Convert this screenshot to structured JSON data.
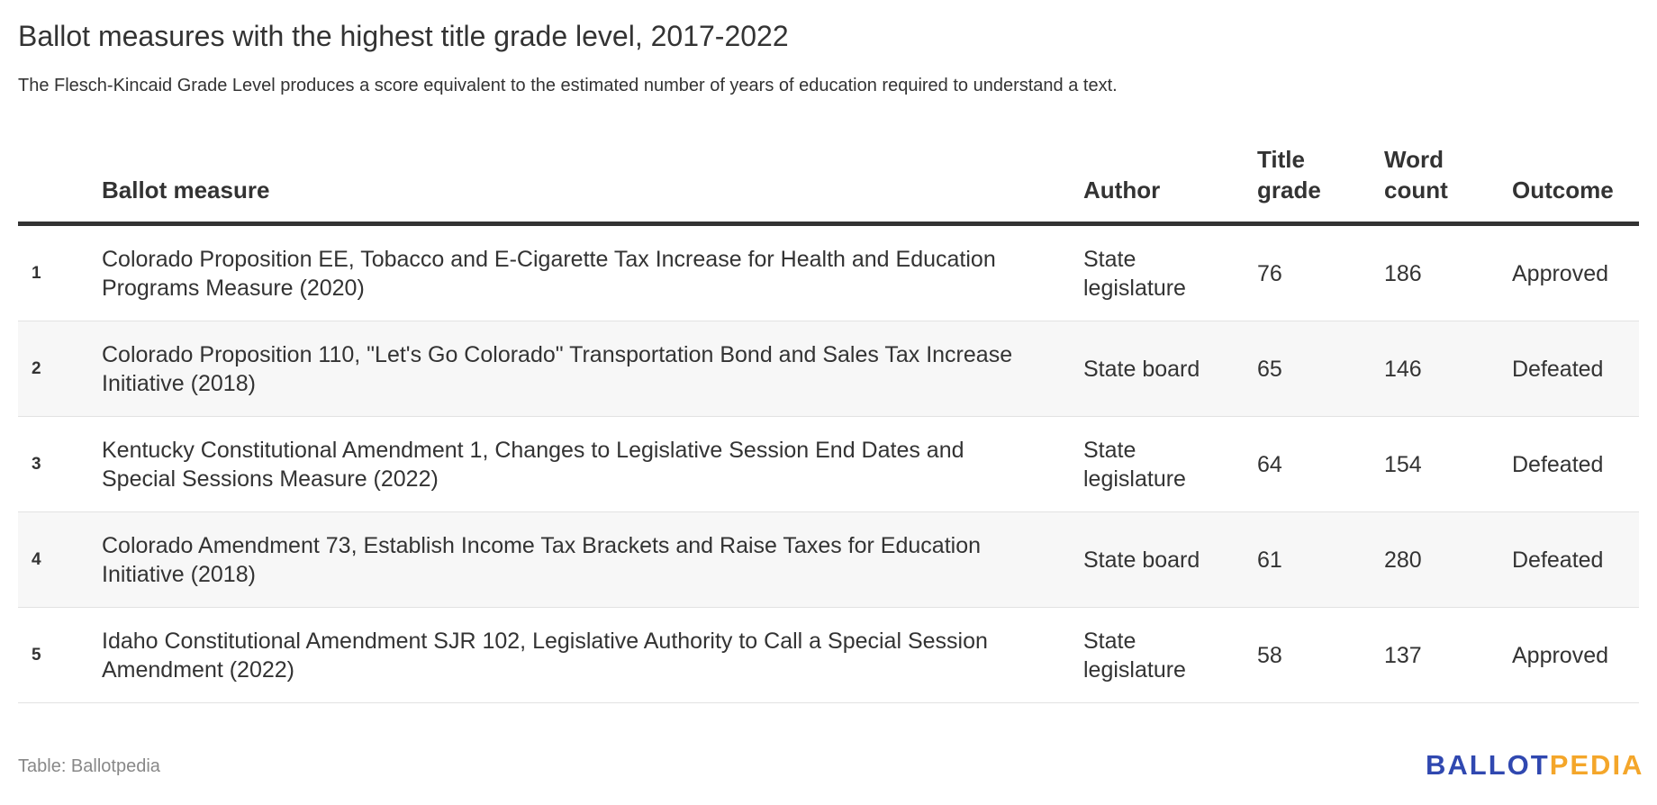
{
  "title": "Ballot measures with the highest title grade level, 2017-2022",
  "subtitle": "The Flesch-Kincaid Grade Level produces a score equivalent to the estimated number of years of education required to understand a text.",
  "columns": [
    "",
    "Ballot measure",
    "Author",
    "Title grade",
    "Word count",
    "Outcome"
  ],
  "rows": [
    {
      "rank": "1",
      "measure": "Colorado Proposition EE, Tobacco and E-Cigarette Tax Increase for Health and Education Programs Measure (2020)",
      "author": "State legislature",
      "grade": "76",
      "words": "186",
      "outcome": "Approved"
    },
    {
      "rank": "2",
      "measure": "Colorado Proposition 110, \"Let's Go Colorado\" Transportation Bond and Sales Tax Increase Initiative (2018)",
      "author": "State board",
      "grade": "65",
      "words": "146",
      "outcome": "Defeated"
    },
    {
      "rank": "3",
      "measure": "Kentucky Constitutional Amendment 1, Changes to Legislative Session End Dates and Special Sessions Measure (2022)",
      "author": "State legislature",
      "grade": "64",
      "words": "154",
      "outcome": "Defeated"
    },
    {
      "rank": "4",
      "measure": "Colorado Amendment 73, Establish Income Tax Brackets and Raise Taxes for Education Initiative (2018)",
      "author": "State board",
      "grade": "61",
      "words": "280",
      "outcome": "Defeated"
    },
    {
      "rank": "5",
      "measure": "Idaho Constitutional Amendment SJR 102, Legislative Authority to Call a Special Session Amendment (2022)",
      "author": "State legislature",
      "grade": "58",
      "words": "137",
      "outcome": "Approved"
    }
  ],
  "footer": "Table: Ballotpedia",
  "logo": {
    "part1": "BALLOT",
    "part2": "PEDIA",
    "color1": "#3048b0",
    "color2": "#f4a62a"
  }
}
